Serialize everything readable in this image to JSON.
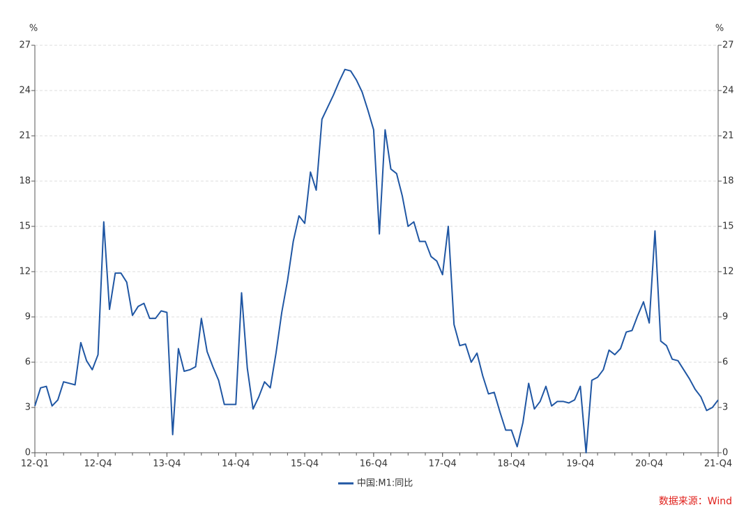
{
  "chart_data": {
    "type": "line",
    "y_unit": "%",
    "y2_unit": "%",
    "categories": [
      "12-Q1",
      null,
      null,
      null,
      null,
      null,
      null,
      null,
      null,
      null,
      null,
      "12-Q4",
      null,
      null,
      null,
      null,
      null,
      null,
      null,
      null,
      null,
      null,
      null,
      "13-Q4",
      null,
      null,
      null,
      null,
      null,
      null,
      null,
      null,
      null,
      null,
      null,
      "14-Q4",
      null,
      null,
      null,
      null,
      null,
      null,
      null,
      null,
      null,
      null,
      null,
      "15-Q4",
      null,
      null,
      null,
      null,
      null,
      null,
      null,
      null,
      null,
      null,
      null,
      "16-Q4",
      null,
      null,
      null,
      null,
      null,
      null,
      null,
      null,
      null,
      null,
      null,
      "17-Q4",
      null,
      null,
      null,
      null,
      null,
      null,
      null,
      null,
      null,
      null,
      null,
      "18-Q4",
      null,
      null,
      null,
      null,
      null,
      null,
      null,
      null,
      null,
      null,
      null,
      "19-Q4",
      null,
      null,
      null,
      null,
      null,
      null,
      null,
      null,
      null,
      null,
      null,
      "20-Q4",
      null,
      null,
      null,
      null,
      null,
      null,
      null,
      null,
      null,
      null,
      null,
      "21-Q4"
    ],
    "series": [
      {
        "name": "中国:M1:同比",
        "color": "#1f56a3",
        "values": [
          3.1,
          4.3,
          4.4,
          3.1,
          3.5,
          4.7,
          4.6,
          4.5,
          7.3,
          6.1,
          5.5,
          6.5,
          15.3,
          9.5,
          11.9,
          11.9,
          11.3,
          9.1,
          9.7,
          9.9,
          8.9,
          8.9,
          9.4,
          9.3,
          1.2,
          6.9,
          5.4,
          5.5,
          5.7,
          8.9,
          6.7,
          5.7,
          4.8,
          3.2,
          3.2,
          3.2,
          10.6,
          5.6,
          2.9,
          3.7,
          4.7,
          4.3,
          6.6,
          9.3,
          11.4,
          14.0,
          15.7,
          15.2,
          18.6,
          17.4,
          22.1,
          22.9,
          23.7,
          24.6,
          25.4,
          25.3,
          24.7,
          23.9,
          22.7,
          21.4,
          14.5,
          21.4,
          18.8,
          18.5,
          17.0,
          15.0,
          15.3,
          14.0,
          14.0,
          13.0,
          12.7,
          11.8,
          15.0,
          8.5,
          7.1,
          7.2,
          6.0,
          6.6,
          5.1,
          3.9,
          4.0,
          2.7,
          1.5,
          1.5,
          0.4,
          2.0,
          4.6,
          2.9,
          3.4,
          4.4,
          3.1,
          3.4,
          3.4,
          3.3,
          3.5,
          4.4,
          0.0,
          4.8,
          5.0,
          5.5,
          6.8,
          6.5,
          6.9,
          8.0,
          8.1,
          9.1,
          10.0,
          8.6,
          14.7,
          7.4,
          7.1,
          6.2,
          6.1,
          5.5,
          4.9,
          4.2,
          3.7,
          2.8,
          3.0,
          3.5
        ]
      }
    ],
    "ylim": [
      0,
      27
    ],
    "yticks": [
      0,
      3,
      6,
      9,
      12,
      15,
      18,
      21,
      24,
      27
    ],
    "y2lim": [
      0,
      27
    ],
    "y2ticks": [
      0,
      3,
      6,
      9,
      12,
      15,
      18,
      21,
      24,
      27
    ],
    "grid": true,
    "legend": "bottom",
    "source": "数据来源：Wind"
  }
}
